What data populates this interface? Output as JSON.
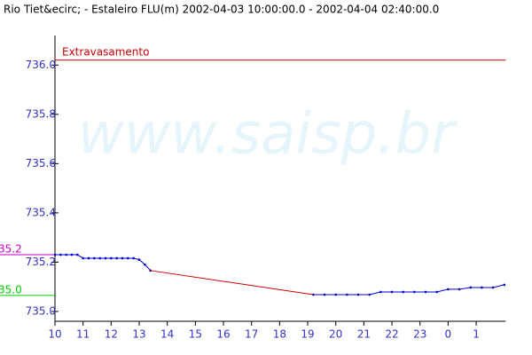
{
  "chart_data": {
    "type": "line",
    "title": "Rio Tiet&ecirc; - Estaleiro FLU(m) 2002-04-03 10:00:00.0 - 2002-04-04 02:40:00.0",
    "watermark": "www.saisp.br",
    "series": [
      {
        "color": "#0000cc",
        "x": [
          10,
          10.2,
          10.4,
          10.6,
          10.8,
          11,
          11.2,
          11.4,
          11.6,
          11.8,
          12,
          12.2,
          12.4,
          12.6,
          12.8,
          13,
          13.2,
          13.4,
          16,
          19.2,
          19.6,
          20,
          20.4,
          20.8,
          21.2,
          21.6,
          22,
          22.4,
          22.8,
          23.2,
          23.6,
          24,
          24.4,
          24.8,
          25.2,
          25.6,
          26
        ],
        "values": [
          735.23,
          735.23,
          735.23,
          735.23,
          735.23,
          735.216,
          735.216,
          735.216,
          735.216,
          735.216,
          735.216,
          735.216,
          735.216,
          735.216,
          735.216,
          735.21,
          735.19,
          735.166,
          null,
          735.068,
          735.068,
          735.068,
          735.068,
          735.068,
          735.068,
          735.079,
          735.079,
          735.079,
          735.079,
          735.079,
          735.079,
          735.09,
          735.09,
          735.097,
          735.097,
          735.097,
          735.108
        ]
      },
      {
        "color": "#cc0000",
        "x": [
          13.4,
          19.2
        ],
        "values": [
          735.166,
          735.068
        ]
      }
    ],
    "reference_lines": [
      {
        "label": "Extravasamento",
        "value": 736.02,
        "color": "#cc0000"
      },
      {
        "label": "35.2",
        "value": 735.23,
        "color": "#cc00cc"
      },
      {
        "label": "35.0",
        "value": 735.065,
        "color": "#00cc00"
      }
    ],
    "xlim": [
      10,
      26.05
    ],
    "xticks": [
      10,
      11,
      12,
      13,
      14,
      15,
      16,
      17,
      18,
      19,
      20,
      21,
      22,
      23,
      {
        "value": 24,
        "label": "0"
      },
      {
        "value": 25,
        "label": "1"
      }
    ],
    "ylim": [
      734.96,
      736.12
    ],
    "yticks": [
      {
        "value": 735,
        "label": "735.0"
      },
      {
        "value": 735.2,
        "label": "735.2"
      },
      {
        "value": 735.4,
        "label": "735.4"
      },
      {
        "value": 735.6,
        "label": "735.6"
      },
      {
        "value": 735.8,
        "label": "735.8"
      },
      {
        "value": 736,
        "label": "736.0"
      }
    ]
  }
}
